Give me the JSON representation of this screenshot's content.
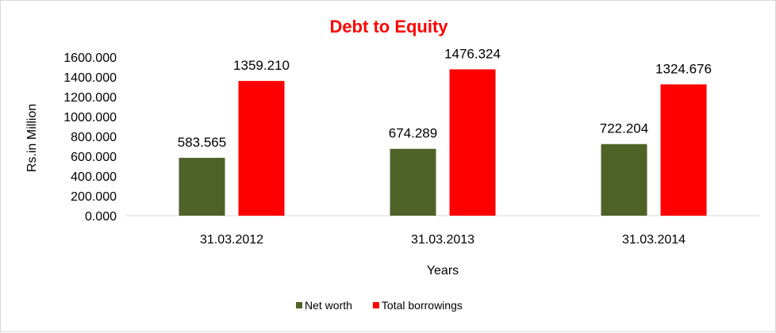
{
  "chart_data": {
    "type": "bar",
    "title": "Debt to Equity",
    "title_color": "#ff0000",
    "xlabel": "Years",
    "ylabel": "Rs.in Million",
    "categories": [
      "31.03.2012",
      "31.03.2013",
      "31.03.2014"
    ],
    "series": [
      {
        "name": "Net worth",
        "color": "#4f6228",
        "values": [
          583.565,
          674.289,
          722.204
        ],
        "labels": [
          "583.565",
          "674.289",
          "722.204"
        ]
      },
      {
        "name": "Total borrowings",
        "color": "#ff0000",
        "values": [
          1359.21,
          1476.324,
          1324.676
        ],
        "labels": [
          "1359.210",
          "1476.324",
          "1324.676"
        ]
      }
    ],
    "ylim": [
      0,
      1600
    ],
    "yticks": [
      0,
      200,
      400,
      600,
      800,
      1000,
      1200,
      1400,
      1600
    ],
    "ytick_labels": [
      "0.000",
      "200.000",
      "400.000",
      "600.000",
      "800.000",
      "1000.000",
      "1200.000",
      "1400.000",
      "1600.000"
    ],
    "grid": false,
    "legend_position": "bottom"
  }
}
